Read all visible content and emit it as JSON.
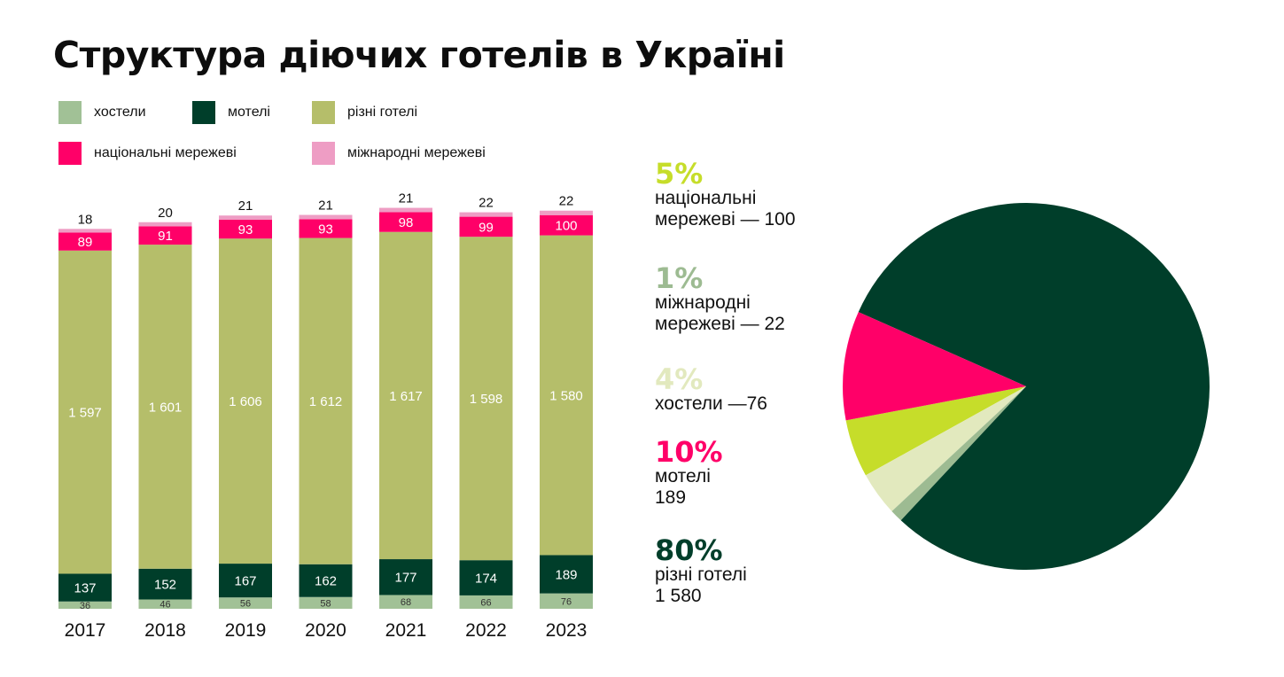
{
  "title": "Структура діючих готелів в Україні",
  "legend": [
    {
      "key": "hostels",
      "label": "хостели",
      "color": "#a1c196"
    },
    {
      "key": "motels",
      "label": "мотелі",
      "color": "#003e2a"
    },
    {
      "key": "various",
      "label": "різні готелі",
      "color": "#b5be6a"
    },
    {
      "key": "national",
      "label": "національні мережеві",
      "color": "#ff0068"
    },
    {
      "key": "international",
      "label": "міжнародні мережеві",
      "color": "#ee9dc4"
    }
  ],
  "chart_data": [
    {
      "type": "bar",
      "stacked": true,
      "categories": [
        "2017",
        "2018",
        "2019",
        "2020",
        "2021",
        "2022",
        "2023"
      ],
      "series": [
        {
          "name": "хостели",
          "color": "#a1c196",
          "values": [
            36,
            46,
            56,
            58,
            68,
            66,
            76
          ],
          "labels": [
            "36",
            "46",
            "56",
            "58",
            "68",
            "66",
            "76"
          ]
        },
        {
          "name": "мотелі",
          "color": "#003e2a",
          "values": [
            137,
            152,
            167,
            162,
            177,
            174,
            189
          ],
          "labels": [
            "137",
            "152",
            "167",
            "162",
            "177",
            "174",
            "189"
          ]
        },
        {
          "name": "різні готелі",
          "color": "#b5be6a",
          "values": [
            1597,
            1601,
            1606,
            1612,
            1617,
            1598,
            1580
          ],
          "labels": [
            "1 597",
            "1 601",
            "1 606",
            "1 612",
            "1 617",
            "1 598",
            "1 580"
          ]
        },
        {
          "name": "національні мережеві",
          "color": "#ff0068",
          "values": [
            89,
            91,
            93,
            93,
            98,
            99,
            100
          ],
          "labels": [
            "89",
            "91",
            "93",
            "93",
            "98",
            "99",
            "100"
          ]
        },
        {
          "name": "міжнародні мережеві",
          "color": "#ee9dc4",
          "values": [
            18,
            20,
            21,
            21,
            21,
            22,
            22
          ],
          "labels": [
            "18",
            "20",
            "21",
            "21",
            "21",
            "22",
            "22"
          ]
        }
      ],
      "legend": "top"
    },
    {
      "type": "pie",
      "slices": [
        {
          "percent_label": "5%",
          "label": "національні\nмережеві — 100",
          "value": 100,
          "color": "#c6dd2a",
          "text_color": "#c6dd2a"
        },
        {
          "percent_label": "1%",
          "label": "міжнародні\nмережеві — 22",
          "value": 22,
          "color": "#9dbb92",
          "text_color": "#9dbb92"
        },
        {
          "percent_label": "4%",
          "label": "хостели —76",
          "value": 76,
          "color": "#e2e9be",
          "text_color": "#e2e9be"
        },
        {
          "percent_label": "10%",
          "label": "мотелі\n189",
          "value": 189,
          "color": "#ff0068",
          "text_color": "#ff0068"
        },
        {
          "percent_label": "80%",
          "label": "різні готелі\n1 580",
          "value": 1580,
          "color": "#003e2a",
          "text_color": "#003e2a"
        }
      ]
    }
  ]
}
